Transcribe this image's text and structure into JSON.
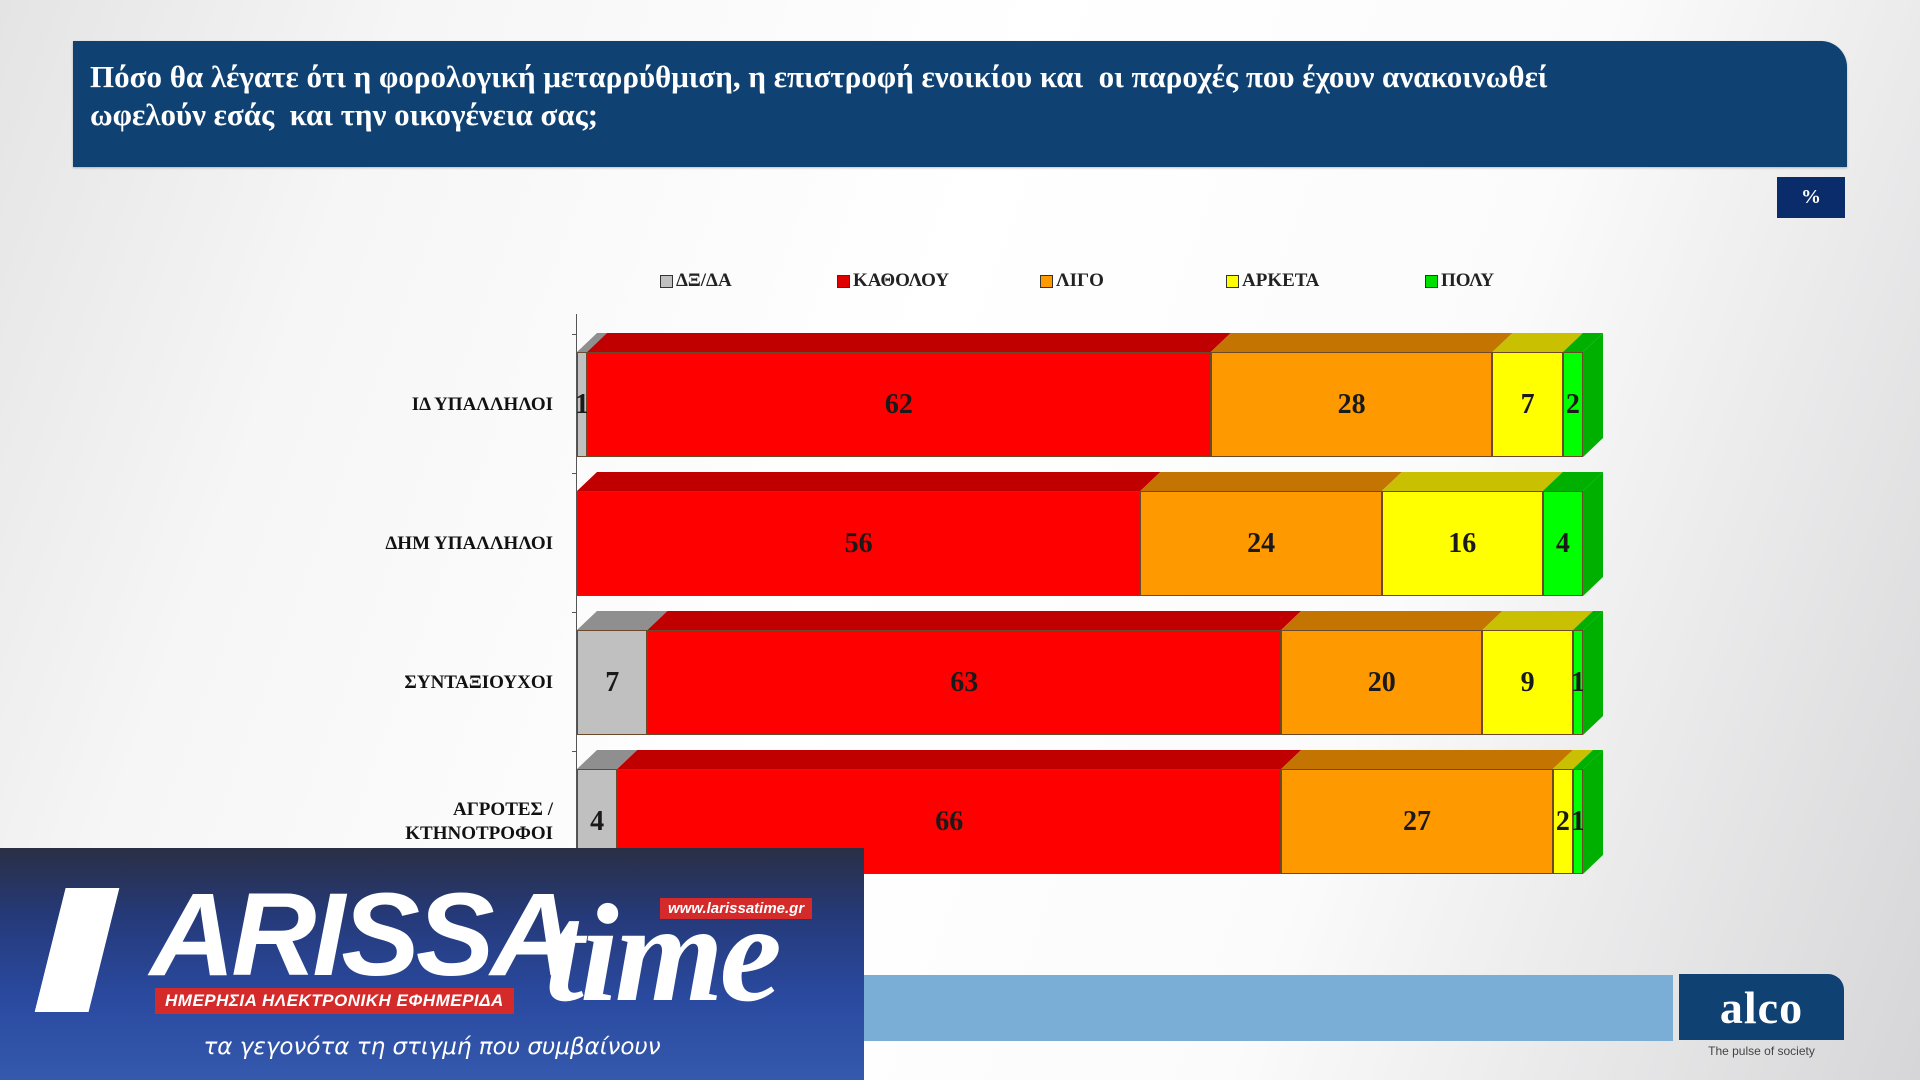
{
  "header": {
    "title": "Πόσο θα λέγατε ότι η φορολογική μεταρρύθμιση, η επιστροφή ενοικίου και  οι παροχές που έχουν ανακοινωθεί\nωφελούν εσάς  και την οικογένεια σας;",
    "unit_badge": "%"
  },
  "colors": {
    "header_bg": "#0f4273",
    "dx_da": "#c0c0c0",
    "kathólou": "#ff0000",
    "ligo": "#ff9900",
    "arketa": "#ffff00",
    "poly": "#00ff00"
  },
  "chart_data": {
    "type": "bar",
    "orientation": "horizontal",
    "stacked": true,
    "style": "3d",
    "title": "Πόσο θα λέγατε ότι η φορολογική μεταρρύθμιση, η επιστροφή ενοικίου και οι παροχές που έχουν ανακοινωθεί ωφελούν εσάς και την οικογένεια σας;",
    "unit": "%",
    "categories": [
      "ΙΔ ΥΠΑΛΛΗΛΟΙ",
      "ΔΗΜ ΥΠΑΛΛΗΛΟΙ",
      "ΣΥΝΤΑΞΙΟΥΧΟΙ",
      "ΑΓΡΟΤΕΣ / ΚΤΗΝΟΤΡΟΦΟΙ"
    ],
    "series": [
      {
        "name": "ΔΞ/ΔΑ",
        "color": "#c0c0c0",
        "values": [
          1,
          0,
          7,
          4
        ]
      },
      {
        "name": "ΚΑΘΟΛΟΥ",
        "color": "#ff0000",
        "values": [
          62,
          56,
          63,
          66
        ]
      },
      {
        "name": "ΛΙΓΟ",
        "color": "#ff9900",
        "values": [
          28,
          24,
          20,
          27
        ]
      },
      {
        "name": "ΑΡΚΕΤΑ",
        "color": "#ffff00",
        "values": [
          7,
          16,
          9,
          2
        ]
      },
      {
        "name": "ΠΟΛΥ",
        "color": "#00ff00",
        "values": [
          2,
          4,
          1,
          1
        ]
      }
    ],
    "xlim": [
      0,
      100
    ],
    "legend_position": "top",
    "grid": false
  },
  "legend": [
    {
      "label": "ΔΞ/ΔΑ",
      "color": "#c0c0c0"
    },
    {
      "label": "ΚΑΘΟΛΟΥ",
      "color": "#e00000"
    },
    {
      "label": "ΛΙΓΟ",
      "color": "#ff9900"
    },
    {
      "label": "ΑΡΚΕΤΑ",
      "color": "#ffff00"
    },
    {
      "label": "ΠΟΛΥ",
      "color": "#00e000"
    }
  ],
  "footer": {
    "brand": "alco",
    "tagline": "The pulse of society"
  },
  "overlay": {
    "logo_L": "L",
    "logo_main": "ARISSA",
    "logo_time": "time",
    "url": "www.larissatime.gr",
    "subtitle": "ΗΜΕΡΗΣΙΑ ΗΛΕΚΤΡΟΝΙΚΗ ΕΦΗΜΕΡΙΔΑ",
    "tagline": "τα γεγονότα τη στιγμή που συμβαίνουν"
  }
}
